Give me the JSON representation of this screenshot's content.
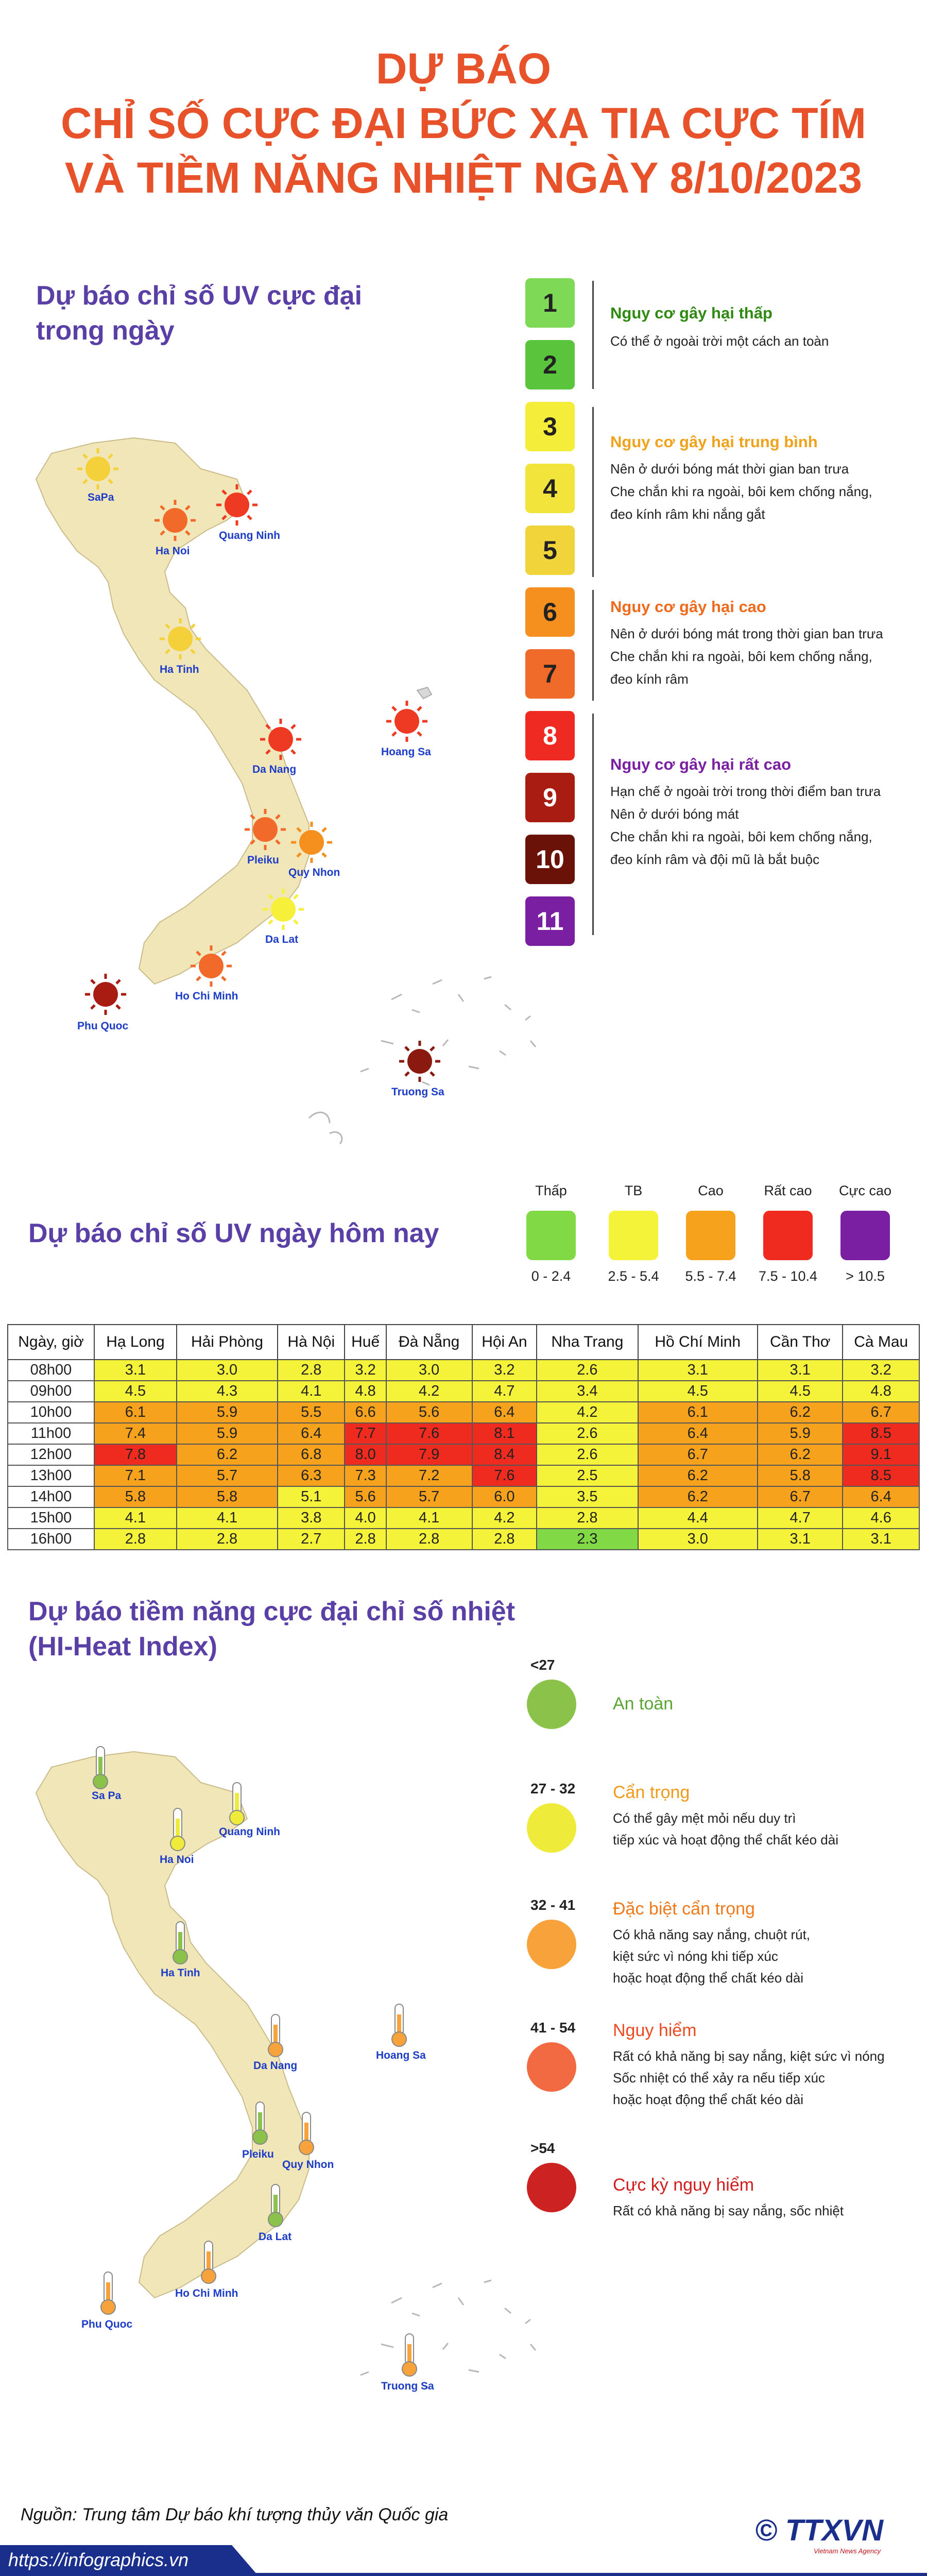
{
  "title": {
    "line1": "DỰ BÁO",
    "line2": "CHỈ SỐ CỰC ĐẠI BỨC XẠ TIA CỰC TÍM",
    "line3": "VÀ TIỀM NĂNG NHIỆT NGÀY 8/10/2023"
  },
  "uv_map": {
    "heading_line1": "Dự báo chỉ số UV cực đại",
    "heading_line2": "trong ngày",
    "cities": [
      "SaPa",
      "Quang Ninh",
      "Ha Noi",
      "Ha Tinh",
      "Hoang Sa",
      "Da Nang",
      "Pleiku",
      "Quy Nhon",
      "Da Lat",
      "Ho Chi Minh",
      "Phu Quoc",
      "Truong Sa"
    ]
  },
  "uv_scale": {
    "numbers": [
      "1",
      "2",
      "3",
      "4",
      "5",
      "6",
      "7",
      "8",
      "9",
      "10",
      "11"
    ],
    "colors": [
      "#7ed957",
      "#5ac43c",
      "#f4ee3a",
      "#f2e43a",
      "#f0d43a",
      "#f5901e",
      "#f06a2a",
      "#ee2a22",
      "#a81c12",
      "#6a1208",
      "#7b1fa2"
    ],
    "groups": [
      {
        "head": "Nguy cơ gây hại thấp",
        "color": "#2f8a12",
        "desc": [
          "Có thể ở ngoài trời một cách an toàn"
        ]
      },
      {
        "head": "Nguy cơ gây hại trung bình",
        "color": "#f0a21a",
        "desc": [
          "Nên ở dưới bóng mát thời gian ban trưa",
          "Che chắn khi ra ngoài, bôi kem chống nắng,",
          "đeo kính râm khi nắng gắt"
        ]
      },
      {
        "head": "Nguy cơ gây hại cao",
        "color": "#ef6a1c",
        "desc": [
          "Nên ở dưới bóng mát trong thời gian ban trưa",
          "Che chắn khi ra ngoài, bôi kem chống nắng,",
          "đeo kính râm"
        ]
      },
      {
        "head": "Nguy cơ gây hại rất cao",
        "color": "#7b1fa2",
        "desc": [
          "Hạn chế ở ngoài trời trong thời điểm ban trưa",
          "Nên ở dưới bóng mát",
          "Che chắn khi ra ngoài, bôi kem chống nắng,",
          "đeo kính râm và đội mũ là bắt buộc"
        ]
      }
    ]
  },
  "uv_today": {
    "heading": "Dự báo chỉ số UV ngày hôm nay",
    "legend": [
      {
        "name": "Thấp",
        "range": "0 - 2.4",
        "color": "#80d945"
      },
      {
        "name": "TB",
        "range": "2.5 - 5.4",
        "color": "#f5f23a"
      },
      {
        "name": "Cao",
        "range": "5.5 - 7.4",
        "color": "#f6a21c"
      },
      {
        "name": "Rất cao",
        "range": "7.5 - 10.4",
        "color": "#ef2a1e"
      },
      {
        "name": "Cực cao",
        "range": "> 10.5",
        "color": "#7b1fa2"
      }
    ]
  },
  "uv_table": {
    "corner": "Ngày, giờ",
    "cities": [
      "Hạ Long",
      "Hải Phòng",
      "Hà Nội",
      "Huế",
      "Đà Nẵng",
      "Hội An",
      "Nha Trang",
      "Hồ Chí Minh",
      "Cần Thơ",
      "Cà Mau"
    ],
    "rows": [
      {
        "time": "08h00",
        "values": [
          "3.1",
          "3.0",
          "2.8",
          "3.2",
          "3.0",
          "3.2",
          "2.6",
          "3.1",
          "3.1",
          "3.2"
        ]
      },
      {
        "time": "09h00",
        "values": [
          "4.5",
          "4.3",
          "4.1",
          "4.8",
          "4.2",
          "4.7",
          "3.4",
          "4.5",
          "4.5",
          "4.8"
        ]
      },
      {
        "time": "10h00",
        "values": [
          "6.1",
          "5.9",
          "5.5",
          "6.6",
          "5.6",
          "6.4",
          "4.2",
          "6.1",
          "6.2",
          "6.7"
        ]
      },
      {
        "time": "11h00",
        "values": [
          "7.4",
          "5.9",
          "6.4",
          "7.7",
          "7.6",
          "8.1",
          "2.6",
          "6.4",
          "5.9",
          "8.5"
        ]
      },
      {
        "time": "12h00",
        "values": [
          "7.8",
          "6.2",
          "6.8",
          "8.0",
          "7.9",
          "8.4",
          "2.6",
          "6.7",
          "6.2",
          "9.1"
        ]
      },
      {
        "time": "13h00",
        "values": [
          "7.1",
          "5.7",
          "6.3",
          "7.3",
          "7.2",
          "7.6",
          "2.5",
          "6.2",
          "5.8",
          "8.5"
        ]
      },
      {
        "time": "14h00",
        "values": [
          "5.8",
          "5.8",
          "5.1",
          "5.6",
          "5.7",
          "6.0",
          "3.5",
          "6.2",
          "6.7",
          "6.4"
        ]
      },
      {
        "time": "15h00",
        "values": [
          "4.1",
          "4.1",
          "3.8",
          "4.0",
          "4.1",
          "4.2",
          "2.8",
          "4.4",
          "4.7",
          "4.6"
        ]
      },
      {
        "time": "16h00",
        "values": [
          "2.8",
          "2.8",
          "2.7",
          "2.8",
          "2.8",
          "2.8",
          "2.3",
          "3.0",
          "3.1",
          "3.1"
        ]
      }
    ]
  },
  "hi": {
    "heading_line1": "Dự báo tiềm năng cực đại chỉ số nhiệt",
    "heading_line2": "(HI-Heat Index)",
    "levels": [
      {
        "range": "<27",
        "head": "An toàn",
        "head_color": "#5aa632",
        "dot": "#8bc34a",
        "desc": []
      },
      {
        "range": "27 - 32",
        "head": "Cẩn trọng",
        "head_color": "#f09a1a",
        "dot": "#eeeb3a",
        "desc": [
          "Có thể gây mệt mỏi nếu duy trì",
          "tiếp xúc và hoạt động thể chất kéo dài"
        ]
      },
      {
        "range": "32 - 41",
        "head": "Đặc biệt cẩn trọng",
        "head_color": "#f07a1a",
        "dot": "#f7a23a",
        "desc": [
          "Có khả năng say nắng, chuột rút,",
          "kiệt sức vì nóng khi tiếp xúc",
          "hoặc hoạt động thể chất kéo dài"
        ]
      },
      {
        "range": "41 - 54",
        "head": "Nguy hiểm",
        "head_color": "#ee4a22",
        "dot": "#f26a42",
        "desc": [
          "Rất có khả năng bị say nắng, kiệt sức vì nóng",
          "Sốc nhiệt có thể xảy ra nếu tiếp xúc",
          "hoặc hoạt động thể chất kéo dài"
        ]
      },
      {
        "range": ">54",
        "head": "Cực kỳ nguy hiểm",
        "head_color": "#d21c1c",
        "dot": "#cc2222",
        "desc": [
          "Rất có khả năng bị say nắng, sốc nhiệt"
        ]
      }
    ],
    "cities": [
      "Sa Pa",
      "Quang Ninh",
      "Ha Noi",
      "Ha Tinh",
      "Hoang Sa",
      "Da Nang",
      "Pleiku",
      "Quy Nhon",
      "Da Lat",
      "Ho Chi Minh",
      "Phu Quoc",
      "Truong Sa"
    ]
  },
  "footer": {
    "source": "Nguồn: Trung tâm Dự báo khí tượng thủy văn Quốc gia",
    "link": "https://infographics.vn",
    "logo": "© TTXVN",
    "logo_sub": "Vietnam News Agency"
  }
}
